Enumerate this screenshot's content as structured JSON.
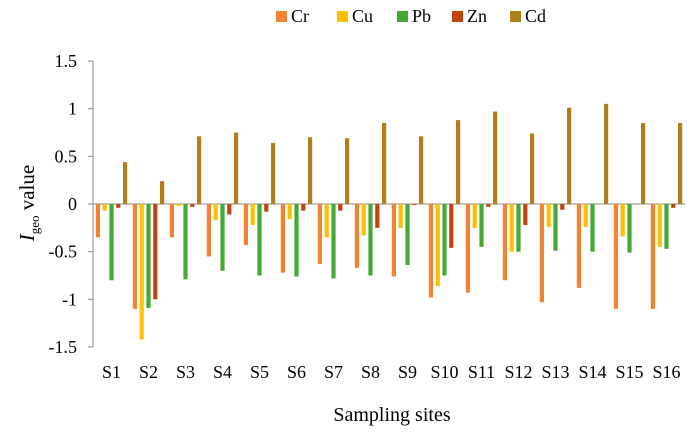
{
  "chart_data": {
    "type": "bar",
    "xlabel": "Sampling sites",
    "ylabel": {
      "symbol": "I",
      "subscript": "geo",
      "suffix": " value"
    },
    "ylim": [
      -1.5,
      1.5
    ],
    "yticks": [
      "1.5",
      "1",
      "0.5",
      "0",
      "-0.5",
      "-1",
      "-1.5"
    ],
    "ytick_values": [
      1.5,
      1,
      0.5,
      0,
      -0.5,
      -1,
      -1.5
    ],
    "grid": false,
    "legend_position": "top",
    "categories": [
      "S1",
      "S2",
      "S3",
      "S4",
      "S5",
      "S6",
      "S7",
      "S8",
      "S9",
      "S10",
      "S11",
      "S12",
      "S13",
      "S14",
      "S15",
      "S16"
    ],
    "series": [
      {
        "name": "Cr",
        "color": "#F58232",
        "values": [
          -0.35,
          -1.1,
          -0.35,
          -0.55,
          -0.43,
          -0.72,
          -0.63,
          -0.67,
          -0.76,
          -0.98,
          -0.93,
          -0.8,
          -1.03,
          -0.88,
          -1.1,
          -1.1
        ]
      },
      {
        "name": "Cu",
        "color": "#FFC000",
        "values": [
          -0.07,
          -1.42,
          -0.02,
          -0.17,
          -0.22,
          -0.16,
          -0.35,
          -0.33,
          -0.25,
          -0.86,
          -0.25,
          -0.5,
          -0.24,
          -0.24,
          -0.34,
          -0.45
        ]
      },
      {
        "name": "Pb",
        "color": "#44A832",
        "values": [
          -0.8,
          -1.09,
          -0.79,
          -0.7,
          -0.75,
          -0.76,
          -0.78,
          -0.75,
          -0.64,
          -0.75,
          -0.45,
          -0.5,
          -0.49,
          -0.5,
          -0.51,
          -0.47
        ]
      },
      {
        "name": "Zn",
        "color": "#C0420F",
        "values": [
          -0.04,
          -1.0,
          -0.03,
          -0.11,
          -0.08,
          -0.07,
          -0.07,
          -0.25,
          -0.01,
          -0.46,
          -0.03,
          -0.22,
          -0.06,
          0.0,
          0.0,
          -0.04
        ]
      },
      {
        "name": "Cd",
        "color": "#B07E1A",
        "values": [
          0.44,
          0.24,
          0.71,
          0.75,
          0.64,
          0.7,
          0.69,
          0.85,
          0.71,
          0.88,
          0.97,
          0.74,
          1.01,
          1.05,
          0.85,
          0.85
        ]
      }
    ]
  }
}
